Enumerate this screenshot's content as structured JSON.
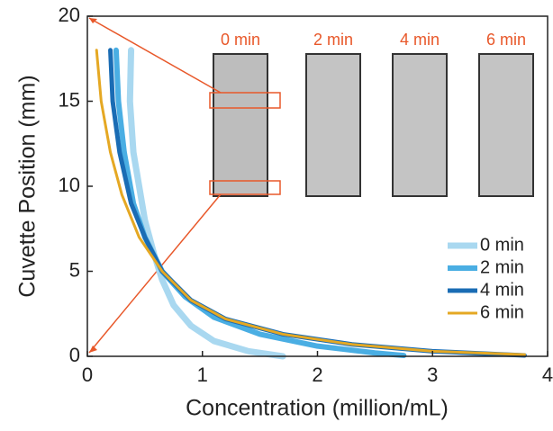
{
  "chart_data": {
    "type": "line",
    "x_label": "Concentration (million/mL)",
    "y_label": "Cuvette Position (mm)",
    "xlim": [
      0,
      4
    ],
    "xticks": [
      0,
      1,
      2,
      3,
      4
    ],
    "ylim": [
      0,
      20
    ],
    "yticks": [
      0,
      5,
      10,
      15,
      20
    ],
    "legend": "lower right",
    "inset_labels": [
      "0 min",
      "2 min",
      "4 min",
      "6 min"
    ],
    "series": [
      {
        "name": "0 min",
        "color": "#a9d8f0",
        "x": [
          0.38,
          0.37,
          0.4,
          0.45,
          0.5,
          0.58,
          0.65,
          0.75,
          0.9,
          1.1,
          1.4,
          1.7
        ],
        "values": [
          18,
          15,
          12,
          10,
          8,
          6,
          4.5,
          3,
          1.8,
          0.9,
          0.3,
          0
        ]
      },
      {
        "name": "2 min",
        "color": "#4aaee3",
        "x": [
          0.25,
          0.27,
          0.32,
          0.4,
          0.5,
          0.65,
          0.85,
          1.1,
          1.5,
          2.0,
          2.5,
          2.75
        ],
        "values": [
          18,
          15,
          12,
          9,
          7,
          5,
          3.5,
          2.3,
          1.3,
          0.6,
          0.2,
          0.05
        ]
      },
      {
        "name": "4 min",
        "color": "#1a6cb4",
        "x": [
          0.2,
          0.22,
          0.28,
          0.38,
          0.5,
          0.65,
          0.9,
          1.2,
          1.7,
          2.3,
          3.0,
          3.8
        ],
        "values": [
          18,
          15,
          12,
          9,
          7,
          5,
          3.3,
          2.2,
          1.3,
          0.7,
          0.3,
          0.05
        ]
      },
      {
        "name": "6 min",
        "color": "#e5a823",
        "x": [
          0.08,
          0.12,
          0.2,
          0.3,
          0.45,
          0.65,
          0.9,
          1.2,
          1.7,
          2.3,
          3.0,
          3.8
        ],
        "values": [
          18,
          15,
          12,
          9.5,
          7,
          5,
          3.3,
          2.2,
          1.3,
          0.7,
          0.3,
          0.1
        ]
      }
    ]
  }
}
